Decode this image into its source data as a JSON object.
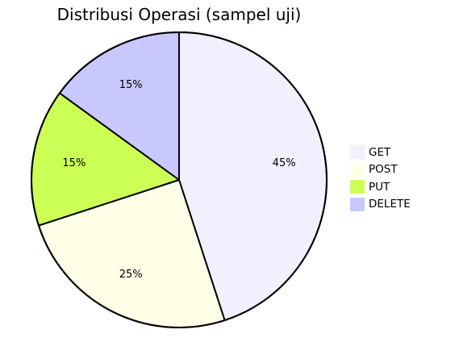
{
  "chart_data": {
    "type": "pie",
    "title": "Distribusi Operasi (sampel uji)",
    "slices": [
      {
        "label": "GET",
        "value": 45,
        "display": "45%",
        "color": "#f0f0ff"
      },
      {
        "label": "POST",
        "value": 25,
        "display": "25%",
        "color": "#ffffe8"
      },
      {
        "label": "PUT",
        "value": 15,
        "display": "15%",
        "color": "#ccff55"
      },
      {
        "label": "DELETE",
        "value": 15,
        "display": "15%",
        "color": "#c8c8ff"
      }
    ],
    "start_angle": "top",
    "direction": "clockwise",
    "legend_position": "right"
  }
}
